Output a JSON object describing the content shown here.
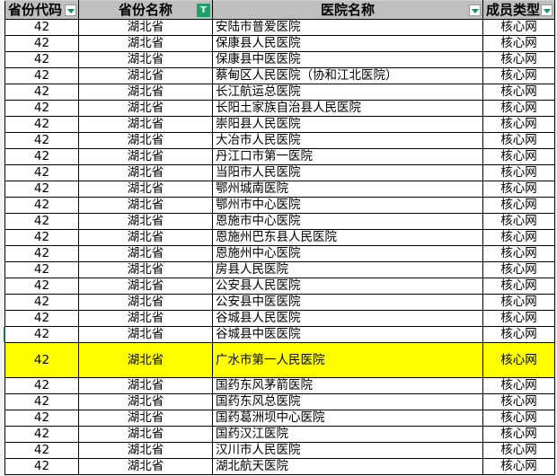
{
  "headers": [
    "省份代码",
    "省份名称",
    "医院名称",
    "成员类型"
  ],
  "filter_icon": "filter-active-icon",
  "dropdown_icon": "dropdown-arrow-icon",
  "highlight_color": "#ffff00",
  "rows": [
    [
      "42",
      "湖北省",
      "安陆市普爱医院",
      "核心网"
    ],
    [
      "42",
      "湖北省",
      "保康县人民医院",
      "核心网"
    ],
    [
      "42",
      "湖北省",
      "保康县中医医院",
      "核心网"
    ],
    [
      "42",
      "湖北省",
      "蔡甸区人民医院（协和江北医院）",
      "核心网"
    ],
    [
      "42",
      "湖北省",
      "长江航运总医院",
      "核心网"
    ],
    [
      "42",
      "湖北省",
      "长阳土家族自治县人民医院",
      "核心网"
    ],
    [
      "42",
      "湖北省",
      "崇阳县人民医院",
      "核心网"
    ],
    [
      "42",
      "湖北省",
      "大冶市人民医院",
      "核心网"
    ],
    [
      "42",
      "湖北省",
      "丹江口市第一医院",
      "核心网"
    ],
    [
      "42",
      "湖北省",
      "当阳市人民医院",
      "核心网"
    ],
    [
      "42",
      "湖北省",
      "鄂州城南医院",
      "核心网"
    ],
    [
      "42",
      "湖北省",
      "鄂州市中心医院",
      "核心网"
    ],
    [
      "42",
      "湖北省",
      "恩施市中心医院",
      "核心网"
    ],
    [
      "42",
      "湖北省",
      "恩施州巴东县人民医院",
      "核心网"
    ],
    [
      "42",
      "湖北省",
      "恩施州中心医院",
      "核心网"
    ],
    [
      "42",
      "湖北省",
      "房县人民医院",
      "核心网"
    ],
    [
      "42",
      "湖北省",
      "公安县人民医院",
      "核心网"
    ],
    [
      "42",
      "湖北省",
      "公安县中医医院",
      "核心网"
    ],
    [
      "42",
      "湖北省",
      "谷城县人民医院",
      "核心网"
    ],
    [
      "42",
      "湖北省",
      "谷城县中医医院",
      "核心网"
    ],
    [
      "42",
      "湖北省",
      "广水市第一人民医院",
      "核心网"
    ],
    [
      "42",
      "湖北省",
      "国药东风茅箭医院",
      "核心网"
    ],
    [
      "42",
      "湖北省",
      "国药东风总医院",
      "核心网"
    ],
    [
      "42",
      "湖北省",
      "国药葛洲坝中心医院",
      "核心网"
    ],
    [
      "42",
      "湖北省",
      "国药汉江医院",
      "核心网"
    ],
    [
      "42",
      "湖北省",
      "汉川市人民医院",
      "核心网"
    ],
    [
      "42",
      "湖北省",
      "湖北航天医院",
      "核心网"
    ]
  ]
}
